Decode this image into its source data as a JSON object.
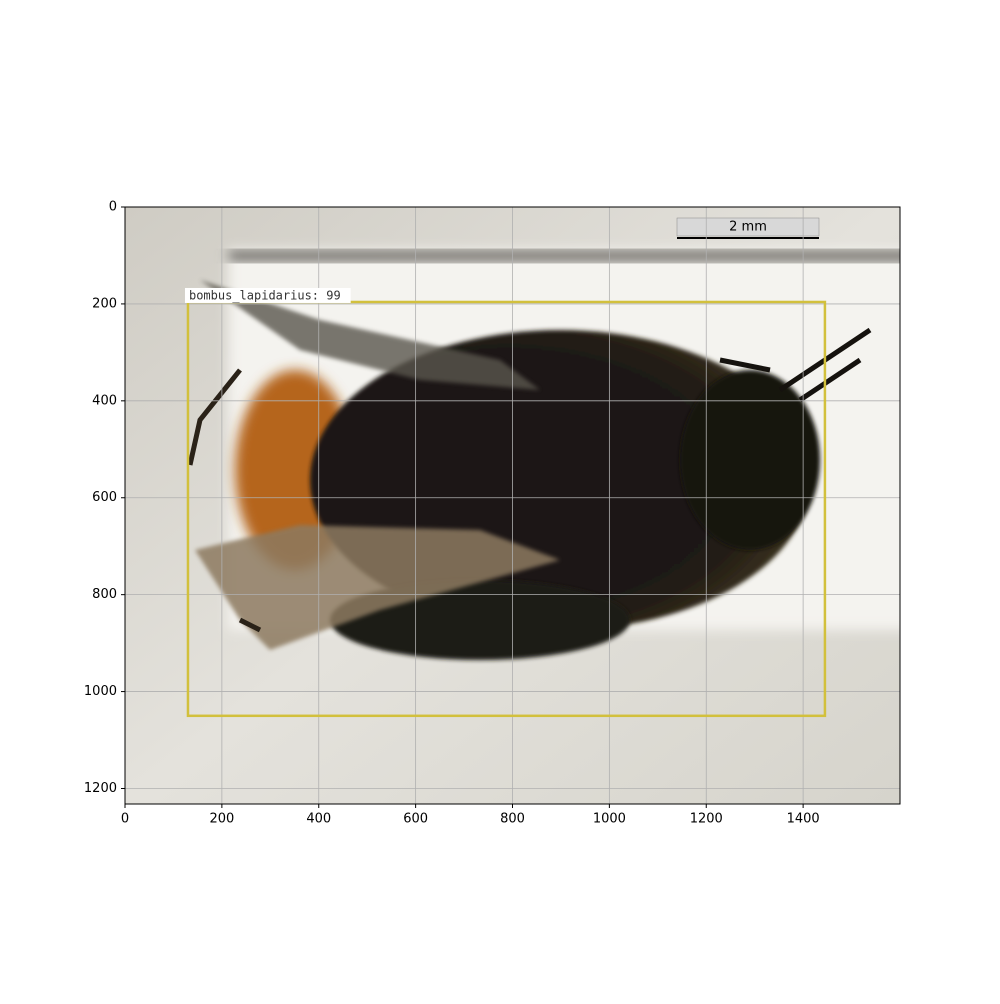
{
  "chart_data": {
    "type": "image",
    "xlim": [
      0,
      1600
    ],
    "ylim": [
      1232,
      0
    ],
    "xticks": [
      0,
      200,
      400,
      600,
      800,
      1000,
      1200,
      1400
    ],
    "yticks": [
      0,
      200,
      400,
      600,
      800,
      1000,
      1200
    ],
    "grid": true,
    "scale_bar_label": "2 mm",
    "boxes": [
      {
        "label": "bombus_lapidarius: 99",
        "x": [
          130,
          1445
        ],
        "y": [
          196,
          1050
        ],
        "color": "#d2c03c"
      }
    ]
  }
}
